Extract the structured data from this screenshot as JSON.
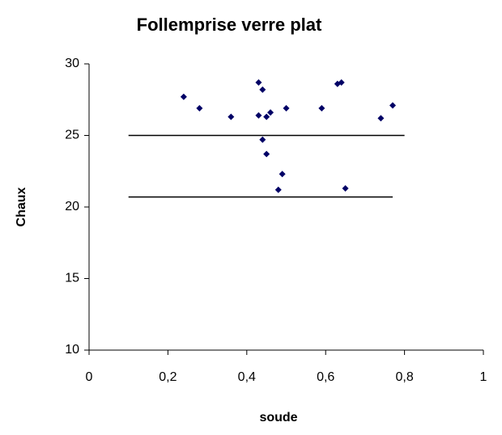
{
  "chart_data": {
    "type": "scatter",
    "title": "Follemprise verre plat",
    "xlabel": "soude",
    "ylabel": "Chaux",
    "series": [
      {
        "color": "#000066",
        "x": [
          0.24,
          0.28,
          0.36,
          0.43,
          0.44,
          0.43,
          0.45,
          0.46,
          0.44,
          0.45,
          0.49,
          0.48,
          0.5,
          0.59,
          0.63,
          0.64,
          0.65,
          0.74,
          0.77
        ],
        "values": [
          27.7,
          26.9,
          26.3,
          28.7,
          28.2,
          26.4,
          26.3,
          26.6,
          24.7,
          23.7,
          22.3,
          21.2,
          26.9,
          26.9,
          28.6,
          28.7,
          21.3,
          26.2,
          27.1
        ]
      }
    ],
    "lines": [
      {
        "color": "#000000",
        "x": [
          0.1,
          0.8
        ],
        "y": [
          25,
          25
        ]
      },
      {
        "color": "#000000",
        "x": [
          0.1,
          0.77
        ],
        "y": [
          20.7,
          20.7
        ]
      }
    ],
    "xlim": [
      0,
      1
    ],
    "ylim": [
      10,
      30
    ],
    "xticks": [
      0,
      {
        "value": 0.2,
        "label": "0,2"
      },
      {
        "value": 0.4,
        "label": "0,4"
      },
      {
        "value": 0.6,
        "label": "0,6"
      },
      {
        "value": 0.8,
        "label": "0,8"
      },
      1
    ],
    "yticks": [
      10,
      15,
      20,
      25,
      30
    ],
    "grid": false
  }
}
